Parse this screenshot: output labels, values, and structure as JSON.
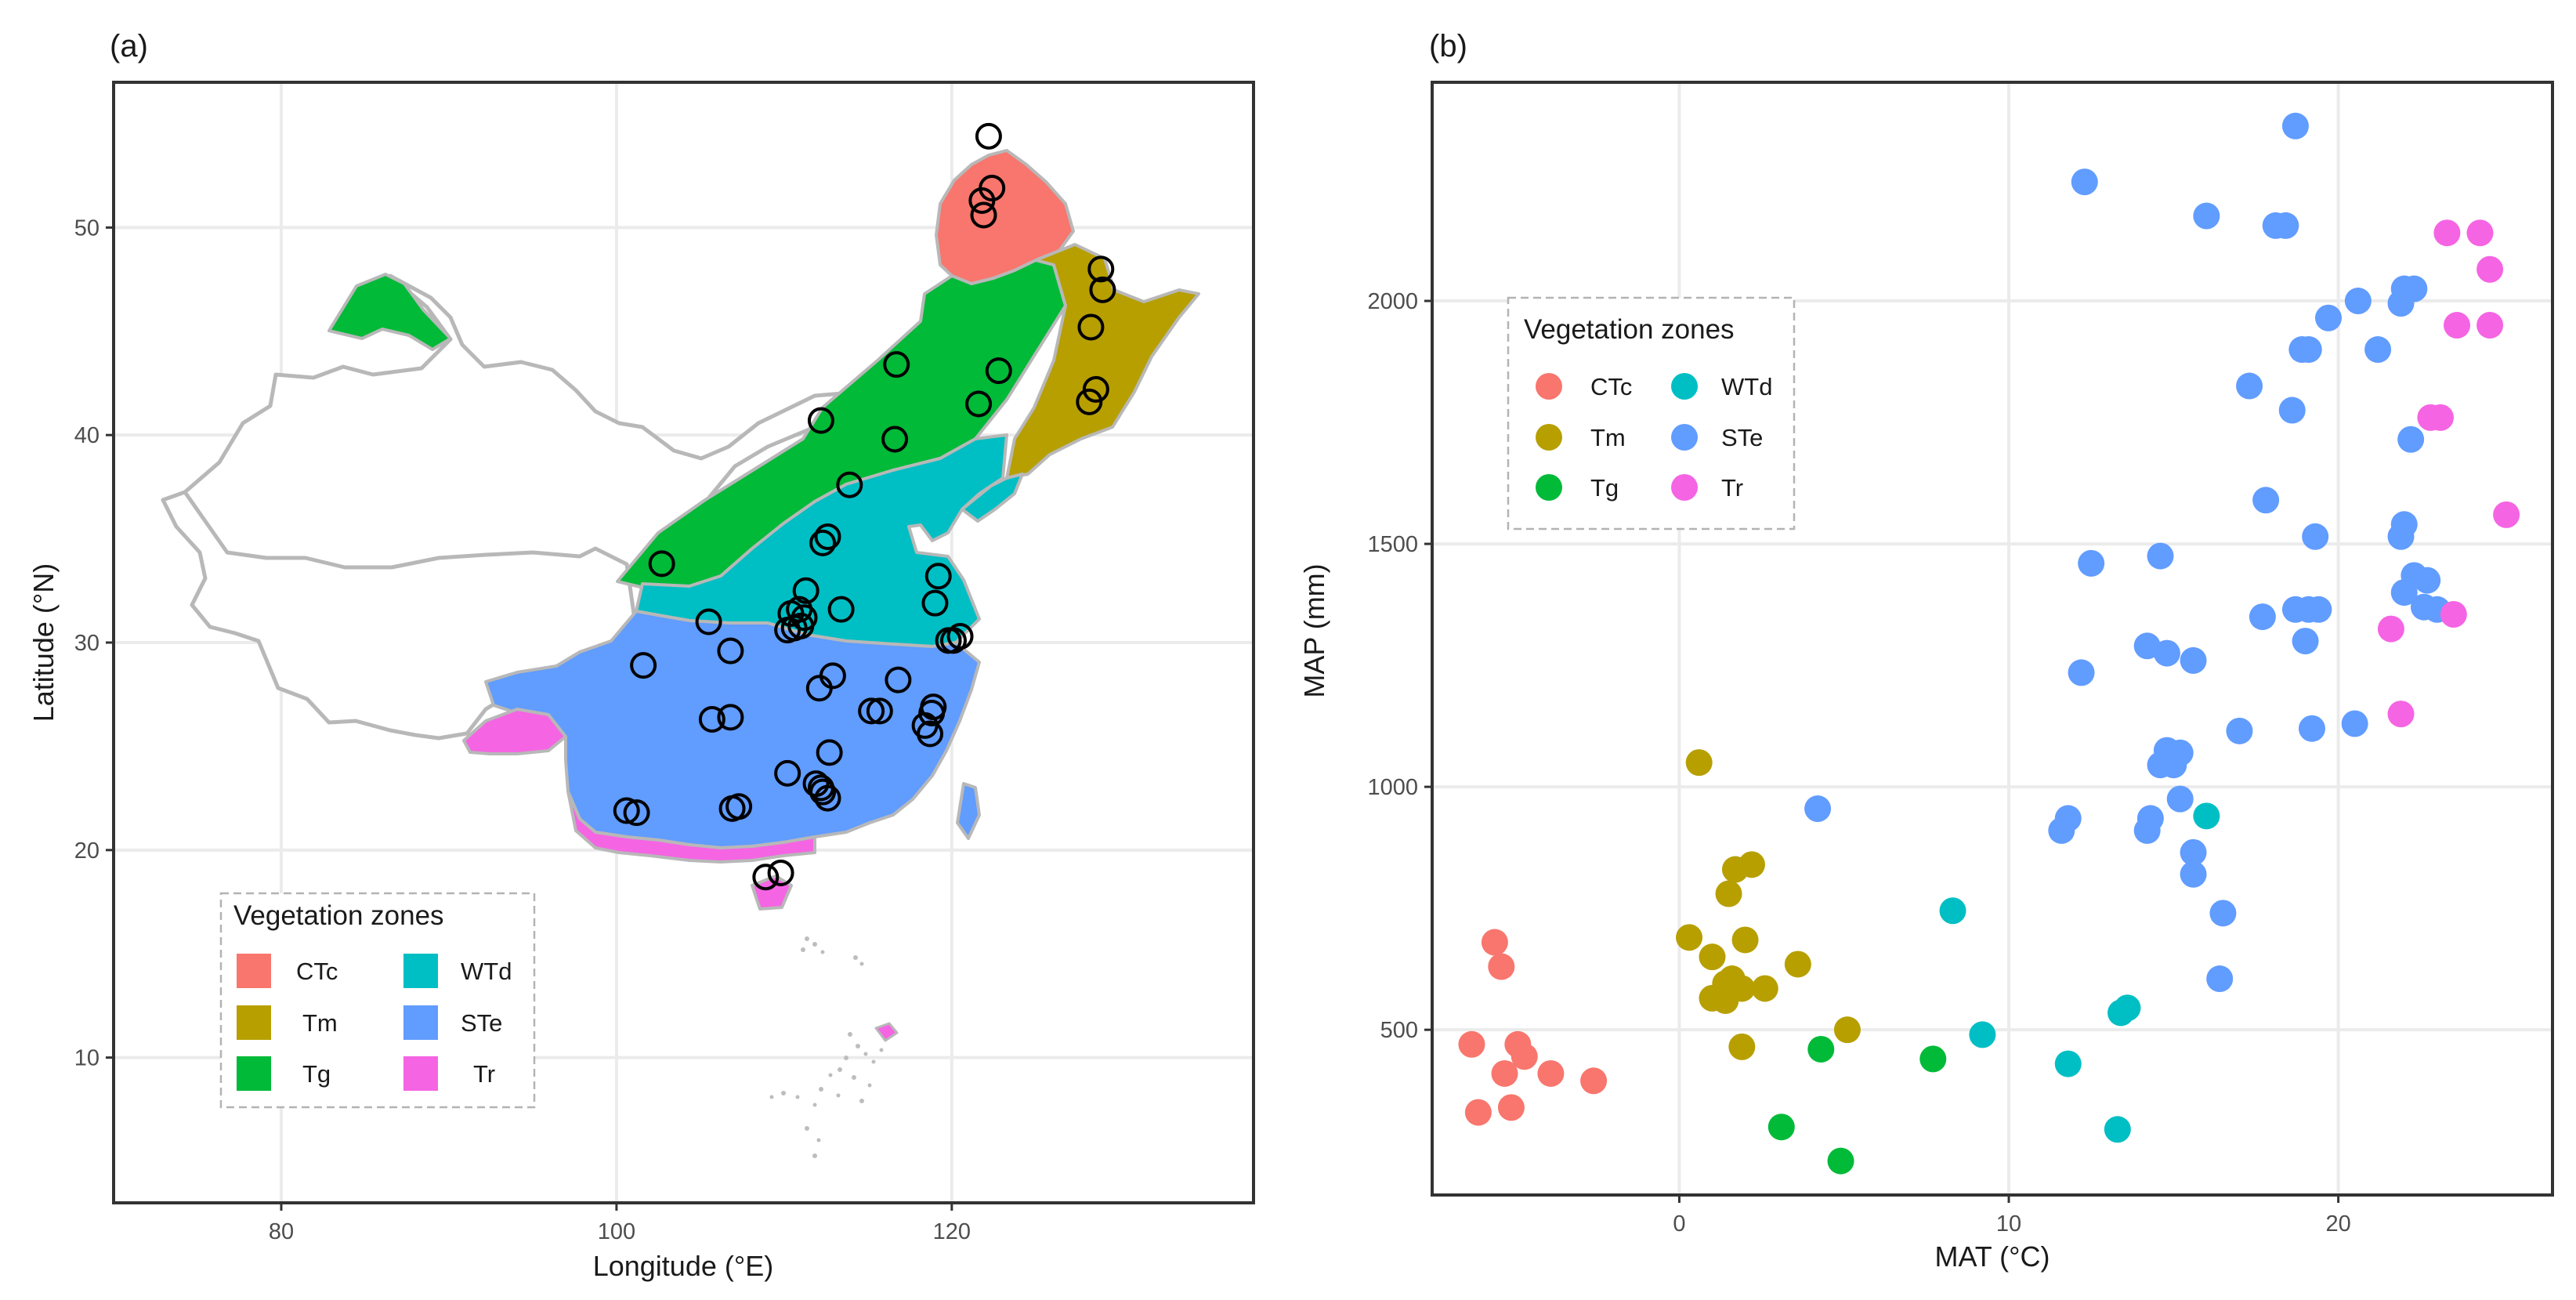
{
  "panels": {
    "a_tag": "(a)",
    "b_tag": "(b)"
  },
  "colors": {
    "CTc": "#F8766D",
    "Tm": "#B79F00",
    "Tg": "#00BA38",
    "WTd": "#00BFC4",
    "STe": "#619CFF",
    "Tr": "#F564E3",
    "grid": "#ebebeb",
    "frame": "#333333",
    "boundary": "#b8b8b8"
  },
  "chart_data": [
    {
      "id": "map",
      "type": "scatter",
      "title": "",
      "xlabel": "Longitude (°E)",
      "ylabel": "Latitude (°N)",
      "xlim": [
        70,
        138
      ],
      "ylim": [
        3,
        57
      ],
      "xticks": [
        80,
        100,
        120
      ],
      "yticks": [
        10,
        20,
        30,
        40,
        50
      ],
      "grid": true,
      "legend": {
        "title": "Vegetation zones",
        "position": "bottom-left",
        "entries": [
          "CTc",
          "Tm",
          "Tg",
          "WTd",
          "STe",
          "Tr"
        ]
      },
      "sites": [
        [
          122.2,
          54.4
        ],
        [
          122.4,
          51.9
        ],
        [
          121.8,
          51.3
        ],
        [
          121.9,
          50.6
        ],
        [
          128.9,
          48.0
        ],
        [
          129.0,
          47.0
        ],
        [
          128.3,
          45.2
        ],
        [
          128.6,
          42.2
        ],
        [
          128.2,
          41.6
        ],
        [
          116.7,
          43.4
        ],
        [
          122.8,
          43.1
        ],
        [
          121.6,
          41.5
        ],
        [
          112.2,
          40.7
        ],
        [
          116.6,
          39.8
        ],
        [
          113.9,
          37.6
        ],
        [
          112.6,
          35.1
        ],
        [
          112.3,
          34.8
        ],
        [
          102.7,
          33.8
        ],
        [
          119.2,
          33.2
        ],
        [
          113.4,
          31.6
        ],
        [
          111.3,
          32.5
        ],
        [
          105.5,
          31.0
        ],
        [
          110.4,
          31.4
        ],
        [
          110.9,
          31.6
        ],
        [
          111.2,
          31.2
        ],
        [
          110.6,
          30.7
        ],
        [
          110.2,
          30.6
        ],
        [
          111.0,
          30.8
        ],
        [
          106.8,
          29.6
        ],
        [
          101.6,
          28.9
        ],
        [
          112.9,
          28.4
        ],
        [
          112.1,
          27.8
        ],
        [
          116.8,
          28.2
        ],
        [
          120.1,
          30.1
        ],
        [
          120.5,
          30.3
        ],
        [
          119.8,
          30.1
        ],
        [
          119.0,
          31.9
        ],
        [
          115.2,
          26.7
        ],
        [
          115.7,
          26.7
        ],
        [
          118.4,
          26.0
        ],
        [
          118.8,
          26.6
        ],
        [
          118.9,
          26.9
        ],
        [
          118.7,
          25.6
        ],
        [
          106.8,
          26.4
        ],
        [
          105.7,
          26.3
        ],
        [
          112.7,
          24.7
        ],
        [
          110.2,
          23.7
        ],
        [
          111.9,
          23.2
        ],
        [
          112.3,
          22.8
        ],
        [
          112.6,
          22.5
        ],
        [
          112.2,
          23.0
        ],
        [
          100.6,
          21.9
        ],
        [
          101.2,
          21.8
        ],
        [
          106.9,
          22.0
        ],
        [
          107.3,
          22.1
        ],
        [
          108.9,
          18.7
        ],
        [
          109.8,
          18.9
        ]
      ]
    },
    {
      "id": "climate",
      "type": "scatter",
      "title": "",
      "xlabel": "MAT (°C)",
      "ylabel": "MAP (mm)",
      "xlim": [
        -7.5,
        26.5
      ],
      "ylim": [
        160,
        2450
      ],
      "xticks": [
        0,
        10,
        20
      ],
      "yticks": [
        500,
        1000,
        1500,
        2000
      ],
      "grid": true,
      "legend": {
        "title": "Vegetation zones",
        "position": "top-left",
        "entries": [
          "CTc",
          "Tm",
          "Tg",
          "WTd",
          "STe",
          "Tr"
        ]
      },
      "series": [
        {
          "name": "CTc",
          "points": [
            [
              -5.6,
              680
            ],
            [
              -5.4,
              630
            ],
            [
              -6.3,
              470
            ],
            [
              -4.9,
              470
            ],
            [
              -4.7,
              445
            ],
            [
              -5.3,
              410
            ],
            [
              -3.9,
              410
            ],
            [
              -2.6,
              395
            ],
            [
              -6.1,
              330
            ],
            [
              -5.1,
              340
            ]
          ]
        },
        {
          "name": "Tm",
          "points": [
            [
              0.6,
              1050
            ],
            [
              1.7,
              830
            ],
            [
              2.2,
              840
            ],
            [
              1.5,
              780
            ],
            [
              0.3,
              690
            ],
            [
              2.0,
              685
            ],
            [
              1.0,
              650
            ],
            [
              3.6,
              635
            ],
            [
              1.6,
              605
            ],
            [
              1.4,
              595
            ],
            [
              1.9,
              585
            ],
            [
              2.6,
              585
            ],
            [
              1.0,
              565
            ],
            [
              1.4,
              560
            ],
            [
              1.9,
              465
            ],
            [
              5.1,
              500
            ]
          ]
        },
        {
          "name": "Tg",
          "points": [
            [
              4.3,
              460
            ],
            [
              7.7,
              440
            ],
            [
              3.1,
              300
            ],
            [
              4.9,
              230
            ]
          ]
        },
        {
          "name": "WTd",
          "points": [
            [
              8.3,
              745
            ],
            [
              16.0,
              940
            ],
            [
              9.2,
              490
            ],
            [
              11.8,
              430
            ],
            [
              13.4,
              535
            ],
            [
              13.6,
              545
            ],
            [
              13.3,
              295
            ]
          ]
        },
        {
          "name": "STe",
          "points": [
            [
              18.7,
              2360
            ],
            [
              12.3,
              2245
            ],
            [
              16.0,
              2175
            ],
            [
              18.1,
              2155
            ],
            [
              18.4,
              2155
            ],
            [
              22.0,
              2025
            ],
            [
              22.3,
              2025
            ],
            [
              20.6,
              2000
            ],
            [
              21.9,
              1995
            ],
            [
              19.7,
              1965
            ],
            [
              18.9,
              1900
            ],
            [
              19.1,
              1900
            ],
            [
              21.2,
              1900
            ],
            [
              17.3,
              1825
            ],
            [
              18.6,
              1775
            ],
            [
              22.2,
              1715
            ],
            [
              17.8,
              1590
            ],
            [
              22.0,
              1540
            ],
            [
              21.9,
              1515
            ],
            [
              19.3,
              1515
            ],
            [
              14.6,
              1475
            ],
            [
              12.5,
              1460
            ],
            [
              22.3,
              1435
            ],
            [
              22.7,
              1425
            ],
            [
              22.0,
              1400
            ],
            [
              18.7,
              1365
            ],
            [
              19.1,
              1365
            ],
            [
              19.4,
              1365
            ],
            [
              22.6,
              1370
            ],
            [
              23.0,
              1365
            ],
            [
              17.7,
              1350
            ],
            [
              19.0,
              1300
            ],
            [
              14.2,
              1290
            ],
            [
              14.8,
              1275
            ],
            [
              15.6,
              1260
            ],
            [
              12.2,
              1235
            ],
            [
              17.0,
              1115
            ],
            [
              19.2,
              1120
            ],
            [
              20.5,
              1130
            ],
            [
              14.8,
              1075
            ],
            [
              15.2,
              1070
            ],
            [
              14.6,
              1045
            ],
            [
              15.0,
              1045
            ],
            [
              4.2,
              955
            ],
            [
              15.2,
              975
            ],
            [
              14.3,
              935
            ],
            [
              11.8,
              935
            ],
            [
              11.6,
              910
            ],
            [
              14.2,
              910
            ],
            [
              15.6,
              865
            ],
            [
              15.6,
              820
            ],
            [
              16.5,
              740
            ],
            [
              16.4,
              605
            ]
          ]
        },
        {
          "name": "Tr",
          "points": [
            [
              23.3,
              2140
            ],
            [
              24.3,
              2140
            ],
            [
              24.6,
              2065
            ],
            [
              23.6,
              1950
            ],
            [
              24.6,
              1950
            ],
            [
              22.8,
              1760
            ],
            [
              23.1,
              1760
            ],
            [
              25.1,
              1560
            ],
            [
              21.6,
              1325
            ],
            [
              23.5,
              1355
            ],
            [
              21.9,
              1150
            ]
          ]
        }
      ]
    }
  ]
}
